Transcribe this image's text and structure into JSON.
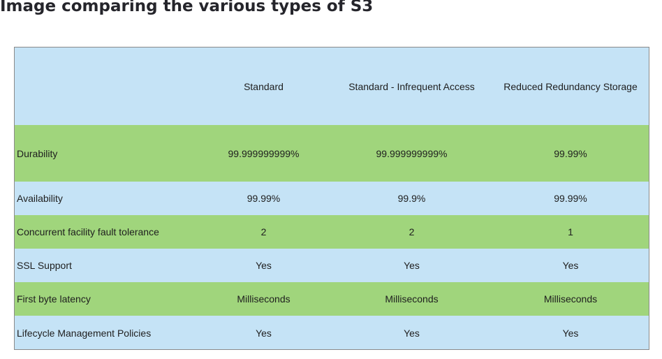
{
  "page_title": "Image comparing the various types of S3",
  "colors": {
    "blue_row": "#c5e3f6",
    "green_row": "#a0d57c"
  },
  "table": {
    "columns": [
      "",
      "Standard",
      "Standard - Infrequent Access",
      "Reduced Redundancy Storage"
    ],
    "rows": [
      {
        "label": "Durability",
        "values": [
          "99.999999999%",
          "99.999999999%",
          "99.99%"
        ]
      },
      {
        "label": "Availability",
        "values": [
          "99.99%",
          "99.9%",
          "99.99%"
        ]
      },
      {
        "label": "Concurrent facility fault tolerance",
        "values": [
          "2",
          "2",
          "1"
        ]
      },
      {
        "label": "SSL Support",
        "values": [
          "Yes",
          "Yes",
          "Yes"
        ]
      },
      {
        "label": "First byte latency",
        "values": [
          "Milliseconds",
          "Milliseconds",
          "Milliseconds"
        ]
      },
      {
        "label": "Lifecycle Management Policies",
        "values": [
          "Yes",
          "Yes",
          "Yes"
        ]
      }
    ]
  }
}
